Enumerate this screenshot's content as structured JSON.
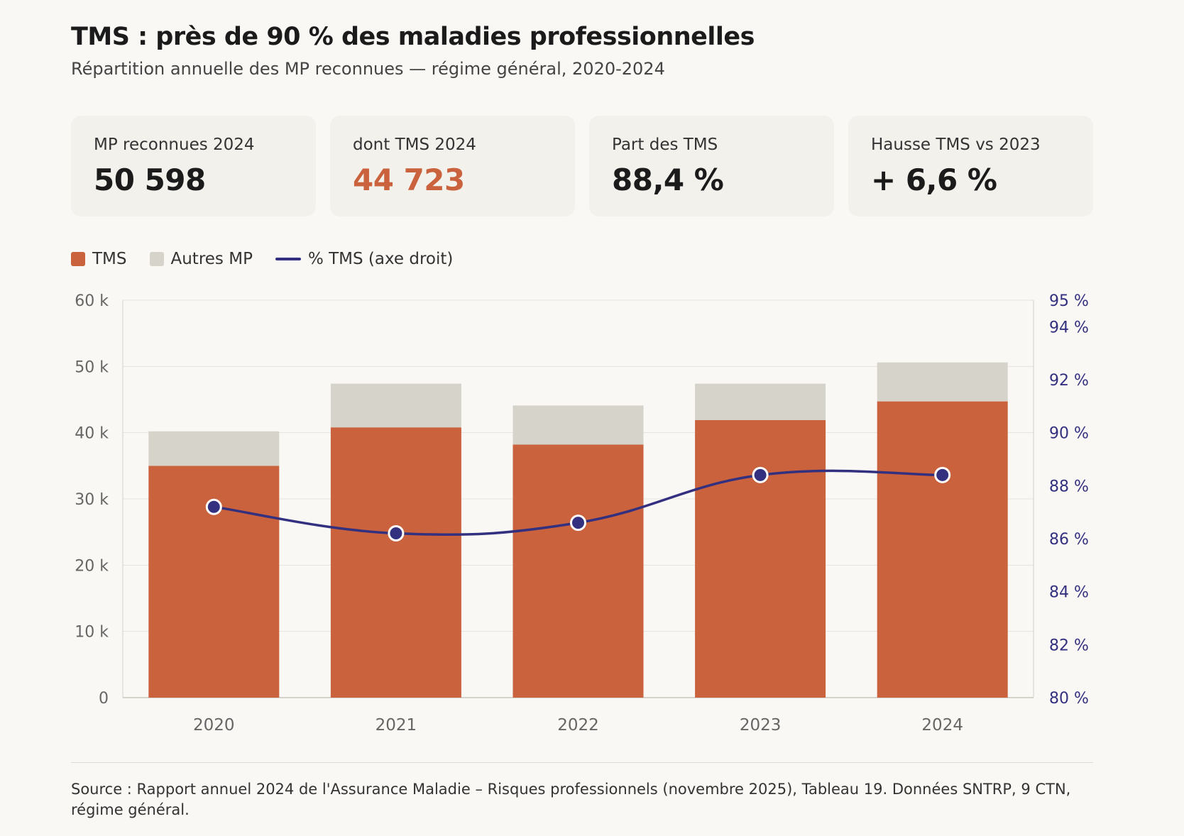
{
  "header": {
    "title": "TMS : près de 90 % des maladies professionnelles",
    "subtitle": "Répartition annuelle des MP reconnues — régime général, 2020-2024"
  },
  "kpis": [
    {
      "label": "MP reconnues 2024",
      "value": "50 598"
    },
    {
      "label": "dont TMS 2024",
      "value": "44 723"
    },
    {
      "label": "Part des TMS",
      "value": "88,4 %"
    },
    {
      "label": "Hausse TMS vs 2023",
      "value": "+ 6,6 %"
    }
  ],
  "legend": {
    "tms": "TMS",
    "autres": "Autres MP",
    "pct": "% TMS (axe droit)"
  },
  "colors": {
    "tms": "#c9623d",
    "autres": "#d6d3cb",
    "line": "#33307f",
    "kpi_accent": "#c9623d"
  },
  "chart_data": {
    "type": "bar",
    "stacked": true,
    "categories": [
      "2020",
      "2021",
      "2022",
      "2023",
      "2024"
    ],
    "series": [
      {
        "name": "TMS",
        "values": [
          35000,
          40800,
          38200,
          41900,
          44723
        ]
      },
      {
        "name": "Autres MP",
        "values": [
          5200,
          6600,
          5900,
          5500,
          5875
        ]
      }
    ],
    "line_series": {
      "name": "% TMS (axe droit)",
      "values": [
        87.2,
        86.2,
        86.6,
        88.4,
        88.4
      ]
    },
    "y_left": {
      "min": 0,
      "max": 60000,
      "ticks": [
        0,
        10000,
        20000,
        30000,
        40000,
        50000,
        60000
      ],
      "tick_labels": [
        "0",
        "10 k",
        "20 k",
        "30 k",
        "40 k",
        "50 k",
        "60 k"
      ]
    },
    "y_right": {
      "min": 80,
      "max": 95,
      "ticks": [
        80,
        82,
        84,
        86,
        88,
        90,
        92,
        94,
        95
      ],
      "tick_labels": [
        "80 %",
        "82 %",
        "84 %",
        "86 %",
        "88 %",
        "90 %",
        "92 %",
        "94 %",
        "95 %"
      ]
    },
    "grid": true,
    "legend_position": "top-left"
  },
  "footer": {
    "source": "Source : Rapport annuel 2024 de l'Assurance Maladie – Risques professionnels (novembre 2025), Tableau 19. Données SNTRP, 9 CTN, régime général."
  }
}
